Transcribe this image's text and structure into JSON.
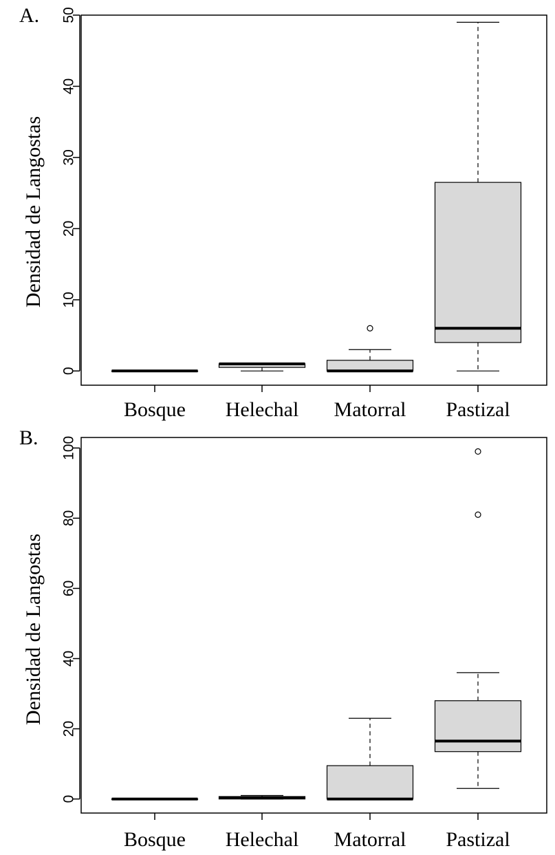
{
  "chart_data": [
    {
      "type": "boxplot",
      "panel_label": "A.",
      "ylabel": "Densidad de Langostas",
      "xlabel": "",
      "categories": [
        "Bosque",
        "Helechal",
        "Matorral",
        "Pastizal"
      ],
      "yticks": [
        0,
        10,
        20,
        30,
        40,
        50
      ],
      "ylim": [
        -2,
        50
      ],
      "box_color": "#d9d9d9",
      "boxes": [
        {
          "category": "Bosque",
          "min": 0,
          "q1": 0,
          "median": 0,
          "q3": 0,
          "max": 0,
          "outliers": []
        },
        {
          "category": "Helechal",
          "min": 0,
          "q1": 0.5,
          "median": 1,
          "q3": 1,
          "max": 1,
          "outliers": []
        },
        {
          "category": "Matorral",
          "min": 0,
          "q1": 0,
          "median": 0,
          "q3": 1.5,
          "max": 3,
          "outliers": [
            6
          ]
        },
        {
          "category": "Pastizal",
          "min": 0,
          "q1": 4,
          "median": 6,
          "q3": 26.5,
          "max": 49,
          "outliers": []
        }
      ]
    },
    {
      "type": "boxplot",
      "panel_label": "B.",
      "ylabel": "Densidad de Langostas",
      "xlabel": "",
      "categories": [
        "Bosque",
        "Helechal",
        "Matorral",
        "Pastizal"
      ],
      "yticks": [
        0,
        20,
        40,
        60,
        80,
        100
      ],
      "ylim": [
        -4,
        103
      ],
      "box_color": "#d9d9d9",
      "boxes": [
        {
          "category": "Bosque",
          "min": 0,
          "q1": 0,
          "median": 0,
          "q3": 0,
          "max": 0,
          "outliers": []
        },
        {
          "category": "Helechal",
          "min": 0,
          "q1": 0,
          "median": 0.3,
          "q3": 0.7,
          "max": 1,
          "outliers": []
        },
        {
          "category": "Matorral",
          "min": 0,
          "q1": 0,
          "median": 0,
          "q3": 9.5,
          "max": 23,
          "outliers": []
        },
        {
          "category": "Pastizal",
          "min": 3,
          "q1": 13.5,
          "median": 16.5,
          "q3": 28,
          "max": 36,
          "outliers": [
            81,
            99
          ]
        }
      ]
    }
  ]
}
